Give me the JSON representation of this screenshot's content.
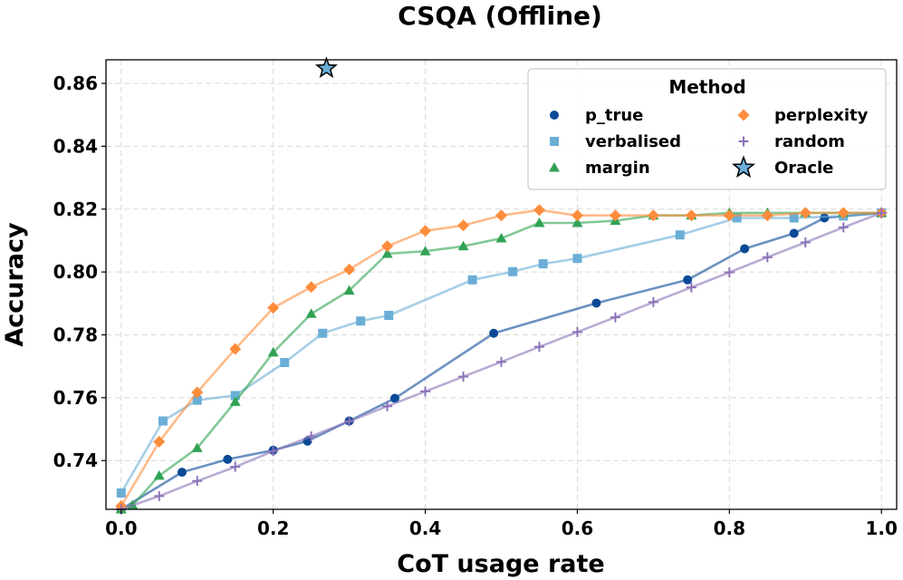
{
  "chart_data": {
    "type": "line",
    "title": "CSQA (Offline)",
    "xlabel": "CoT usage rate",
    "ylabel": "Accuracy",
    "xlim": [
      -0.02,
      1.02
    ],
    "ylim": [
      0.7245,
      0.8675
    ],
    "xticks": [
      0.0,
      0.2,
      0.4,
      0.6,
      0.8,
      1.0
    ],
    "xtick_labels": [
      "0.0",
      "0.2",
      "0.4",
      "0.6",
      "0.8",
      "1.0"
    ],
    "yticks": [
      0.74,
      0.76,
      0.78,
      0.8,
      0.82,
      0.84,
      0.86
    ],
    "ytick_labels": [
      "0.74",
      "0.76",
      "0.78",
      "0.80",
      "0.82",
      "0.84",
      "0.86"
    ],
    "grid": true,
    "legend": {
      "title": "Method",
      "placement": "top-right",
      "columns": 2
    },
    "series": [
      {
        "name": "p_true",
        "color": "#0a4a96",
        "marker": "circle",
        "x": [
          0.0,
          0.08,
          0.14,
          0.2,
          0.245,
          0.3,
          0.36,
          0.49,
          0.625,
          0.745,
          0.82,
          0.885,
          0.925,
          1.0
        ],
        "y": [
          0.7245,
          0.7363,
          0.7404,
          0.7433,
          0.7462,
          0.7526,
          0.7598,
          0.7805,
          0.7901,
          0.7975,
          0.8074,
          0.8123,
          0.8172,
          0.8188
        ]
      },
      {
        "name": "verbalised",
        "color": "#6aaed6",
        "marker": "square",
        "x": [
          0.0,
          0.055,
          0.1,
          0.15,
          0.215,
          0.265,
          0.315,
          0.352,
          0.462,
          0.515,
          0.555,
          0.6,
          0.735,
          0.81,
          0.885,
          0.95,
          1.0
        ],
        "y": [
          0.7297,
          0.7526,
          0.7592,
          0.7607,
          0.7712,
          0.7805,
          0.7844,
          0.7862,
          0.7975,
          0.8001,
          0.8026,
          0.8043,
          0.8118,
          0.8172,
          0.8172,
          0.8178,
          0.8188
        ]
      },
      {
        "name": "margin",
        "color": "#31a354",
        "marker": "triangle",
        "x": [
          0.0,
          0.015,
          0.05,
          0.1,
          0.15,
          0.2,
          0.25,
          0.3,
          0.35,
          0.4,
          0.45,
          0.5,
          0.55,
          0.6,
          0.65,
          0.7,
          0.75,
          0.8,
          0.85,
          0.9,
          0.95,
          1.0
        ],
        "y": [
          0.7245,
          0.7258,
          0.7352,
          0.744,
          0.7587,
          0.7744,
          0.7867,
          0.7941,
          0.8058,
          0.8066,
          0.8082,
          0.8107,
          0.8156,
          0.8156,
          0.8163,
          0.818,
          0.818,
          0.8188,
          0.8188,
          0.8188,
          0.8188,
          0.8188
        ]
      },
      {
        "name": "perplexity",
        "color": "#fd8d3c",
        "marker": "diamond",
        "x": [
          0.0,
          0.05,
          0.1,
          0.15,
          0.2,
          0.25,
          0.3,
          0.35,
          0.4,
          0.45,
          0.5,
          0.55,
          0.6,
          0.65,
          0.7,
          0.75,
          0.8,
          0.85,
          0.9,
          0.95,
          1.0
        ],
        "y": [
          0.7255,
          0.746,
          0.7617,
          0.7755,
          0.7886,
          0.7952,
          0.8008,
          0.8082,
          0.8131,
          0.8148,
          0.818,
          0.8197,
          0.818,
          0.818,
          0.818,
          0.818,
          0.818,
          0.818,
          0.8188,
          0.8188,
          0.8188
        ]
      },
      {
        "name": "random",
        "color": "#8c73b7",
        "marker": "plus",
        "x": [
          0.0,
          0.05,
          0.1,
          0.15,
          0.2,
          0.25,
          0.3,
          0.35,
          0.4,
          0.45,
          0.5,
          0.55,
          0.6,
          0.65,
          0.7,
          0.75,
          0.8,
          0.85,
          0.9,
          0.95,
          1.0
        ],
        "y": [
          0.7245,
          0.7287,
          0.7335,
          0.738,
          0.743,
          0.7477,
          0.7525,
          0.7573,
          0.762,
          0.7667,
          0.7714,
          0.7762,
          0.7809,
          0.7856,
          0.7904,
          0.7951,
          0.7999,
          0.8047,
          0.8094,
          0.8142,
          0.8188
        ]
      }
    ],
    "oracle": {
      "name": "Oracle",
      "color": "#6aaed6",
      "marker": "star",
      "x": 0.27,
      "y": 0.8648
    }
  }
}
